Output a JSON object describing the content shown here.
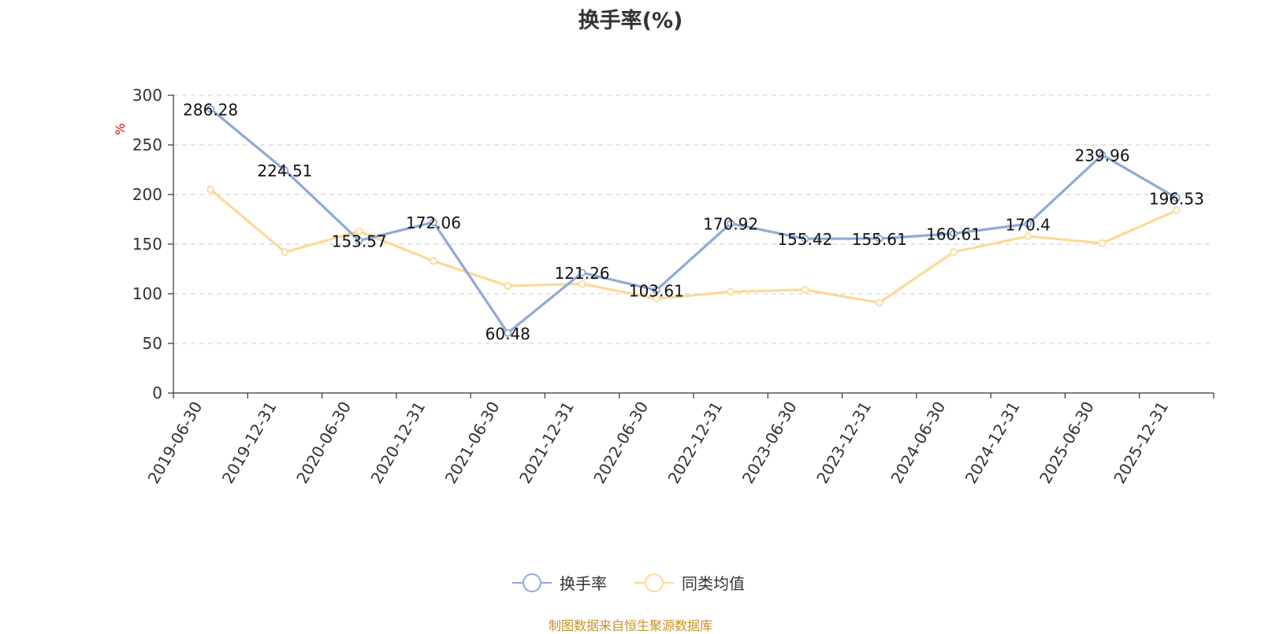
{
  "source_note": "制图数据来自恒生聚源数据库",
  "chart_data": {
    "type": "line",
    "title": "换手率(%)",
    "ylabel": "%",
    "ylim": [
      0,
      300
    ],
    "yticks": [
      "0",
      "50",
      "100",
      "150",
      "200",
      "250",
      "300"
    ],
    "grid": true,
    "legend_position": "bottom-center",
    "x": [
      "2019-06-30",
      "2019-12-31",
      "2020-06-30",
      "2020-12-31",
      "2021-06-30",
      "2021-12-31",
      "2022-06-30",
      "2022-12-31",
      "2023-06-30",
      "2023-12-31",
      "2024-06-30",
      "2024-12-31",
      "2025-06-30",
      "2025-12-31"
    ],
    "series": [
      {
        "name": "换手率",
        "color": "#8eaad6",
        "show_labels": true,
        "values": [
          286.28,
          224.51,
          153.57,
          172.06,
          60.48,
          121.26,
          103.61,
          170.92,
          155.42,
          155.61,
          160.61,
          170.4,
          239.96,
          196.53
        ],
        "labels": [
          "286.28",
          "224.51",
          "153.57",
          "172.06",
          "60.48",
          "121.26",
          "103.61",
          "170.92",
          "155.42",
          "155.61",
          "160.61",
          "170.4",
          "239.96",
          "196.53"
        ]
      },
      {
        "name": "同类均值",
        "color": "#fcd998",
        "show_labels": false,
        "values": [
          205,
          142,
          163,
          133,
          108,
          110,
          95,
          102,
          104,
          91,
          142,
          158,
          151,
          184
        ]
      }
    ]
  }
}
